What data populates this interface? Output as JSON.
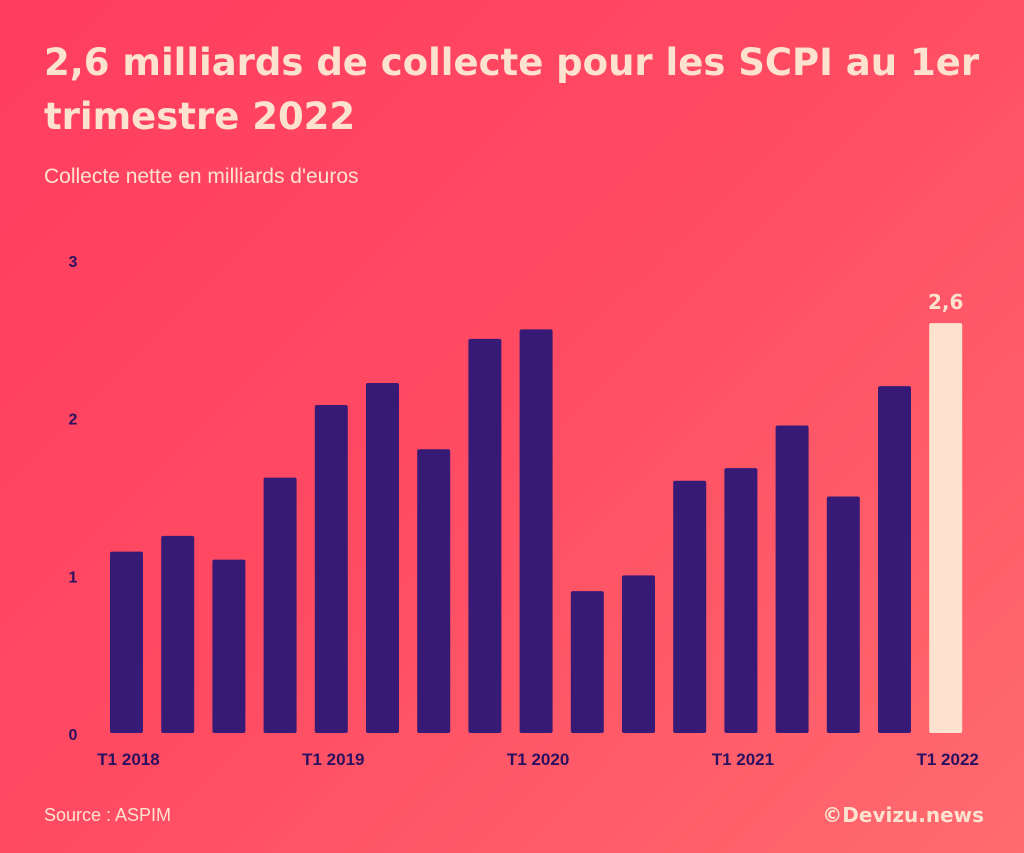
{
  "title": "2,6 milliards de collecte pour les SCPI au 1er trimestre 2022",
  "subtitle": "Collecte nette en milliards d'euros",
  "source": "Source : ASPIM",
  "brand": "©Devizu.news",
  "colors": {
    "bar": "#371a76",
    "highlight": "#fde3cf",
    "text": "#fde3cf",
    "axis_text": "#2a1060"
  },
  "chart_data": {
    "type": "bar",
    "title": "2,6 milliards de collecte pour les SCPI au 1er trimestre 2022",
    "subtitle": "Collecte nette en milliards d'euros",
    "ylim": [
      0,
      3
    ],
    "yticks": [
      0,
      1,
      2,
      3
    ],
    "xtick_labels": [
      {
        "index": 0,
        "label": "T1 2018"
      },
      {
        "index": 4,
        "label": "T1 2019"
      },
      {
        "index": 8,
        "label": "T1 2020"
      },
      {
        "index": 12,
        "label": "T1 2021"
      },
      {
        "index": 16,
        "label": "T1 2022"
      }
    ],
    "values": [
      1.15,
      1.25,
      1.1,
      1.62,
      2.08,
      2.22,
      1.8,
      2.5,
      2.56,
      0.9,
      1.0,
      1.6,
      1.68,
      1.95,
      1.5,
      2.2,
      2.6
    ],
    "highlight_index": 16,
    "highlight_label": "2,6",
    "grid": false,
    "legend": "none"
  }
}
